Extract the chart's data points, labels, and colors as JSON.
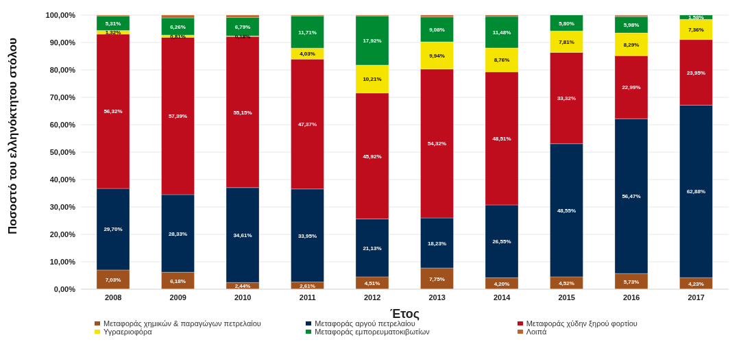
{
  "chart_data": {
    "type": "bar",
    "stacked": true,
    "ylabel": "Ποσοστό του ελληνόκτητου στόλου",
    "xlabel": "Έτος",
    "categories": [
      "2008",
      "2009",
      "2010",
      "2011",
      "2012",
      "2013",
      "2014",
      "2015",
      "2016",
      "2017"
    ],
    "series": [
      {
        "name": "Μεταφοράς χημικών & παραγώγων πετρελαίου",
        "color": "#a0521e",
        "values": [
          7.03,
          6.18,
          2.44,
          2.61,
          4.51,
          7.75,
          4.2,
          4.52,
          5.73,
          4.23
        ],
        "value_labels": [
          "7,03%",
          "6,18%",
          "2,44%",
          "2,61%",
          "4,51%",
          "7,75%",
          "4,20%",
          "4,52%",
          "5,73%",
          "4,23%"
        ]
      },
      {
        "name": "Μεταφοράς αργού πετρελαίου",
        "color": "#002a54",
        "values": [
          29.7,
          28.33,
          34.61,
          33.95,
          21.13,
          18.23,
          26.55,
          48.55,
          56.47,
          62.88
        ],
        "value_labels": [
          "29,70%",
          "28,33%",
          "34,61%",
          "33,95%",
          "21,13%",
          "18,23%",
          "26,55%",
          "48,55%",
          "56,47%",
          "62,88%"
        ]
      },
      {
        "name": "Μεταφοράς χύδην ξηρού φορτίου",
        "color": "#c00d1e",
        "values": [
          56.32,
          57.39,
          55.15,
          47.37,
          45.92,
          54.32,
          48.51,
          33.32,
          22.99,
          23.95
        ],
        "value_labels": [
          "56,32%",
          "57,39%",
          "55,15%",
          "47,37%",
          "45,92%",
          "54,32%",
          "48,51%",
          "33,32%",
          "22,99%",
          "23,95%"
        ]
      },
      {
        "name": "Υγραεριοφόρα",
        "color": "#f5e400",
        "values": [
          1.32,
          0.81,
          0.18,
          4.03,
          10.21,
          9.94,
          8.76,
          7.81,
          8.29,
          7.36
        ],
        "value_labels": [
          "1,32%",
          "0,81%",
          "0,18%",
          "4,03%",
          "10,21%",
          "9,94%",
          "8,76%",
          "7,81%",
          "8,29%",
          "7,36%"
        ]
      },
      {
        "name": "Μεταφοράς εμπορευματοκιβωτίων",
        "color": "#008a32",
        "values": [
          5.31,
          6.26,
          6.79,
          11.71,
          17.92,
          9.08,
          11.48,
          5.8,
          5.98,
          1.58
        ],
        "value_labels": [
          "5,31%",
          "6,26%",
          "6,79%",
          "11,71%",
          "17,92%",
          "9,08%",
          "11,48%",
          "5,80%",
          "5,98%",
          "1,58%"
        ]
      },
      {
        "name": "Λοιπά",
        "color": "#c0622a",
        "values": [
          0.3,
          1.0,
          0.8,
          0.3,
          0.3,
          0.7,
          0.5,
          0,
          0.5,
          0
        ]
      }
    ],
    "ylim": [
      0,
      100
    ],
    "yticks": [
      {
        "value": 0,
        "label": "0,00%"
      },
      {
        "value": 10,
        "label": "10,00%"
      },
      {
        "value": 20,
        "label": "20,00%"
      },
      {
        "value": 30,
        "label": "30,00%"
      },
      {
        "value": 40,
        "label": "40,00%"
      },
      {
        "value": 50,
        "label": "50,00%"
      },
      {
        "value": 60,
        "label": "60,00%"
      },
      {
        "value": 70,
        "label": "70,00%"
      },
      {
        "value": 80,
        "label": "80,00%"
      },
      {
        "value": 90,
        "label": "90,00%"
      },
      {
        "value": 100,
        "label": "100,00%"
      }
    ],
    "grid": "y",
    "legend": "bottom"
  }
}
